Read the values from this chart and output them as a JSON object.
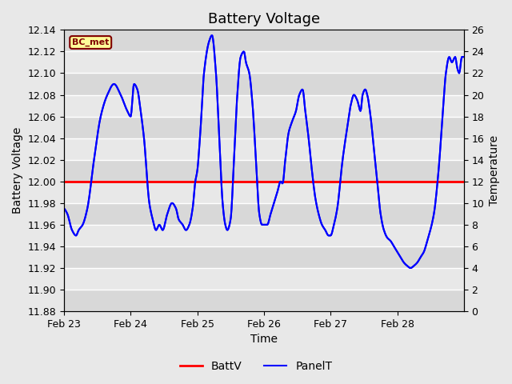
{
  "title": "Battery Voltage",
  "ylabel_left": "Battery Voltage",
  "ylabel_right": "Temperature",
  "xlabel": "Time",
  "xlim": [
    0,
    6.0
  ],
  "ylim_left": [
    11.88,
    12.14
  ],
  "ylim_right": [
    0,
    26
  ],
  "yticks_left": [
    11.88,
    11.9,
    11.92,
    11.94,
    11.96,
    11.98,
    12.0,
    12.02,
    12.04,
    12.06,
    12.08,
    12.1,
    12.12,
    12.14
  ],
  "yticks_right": [
    0,
    2,
    4,
    6,
    8,
    10,
    12,
    14,
    16,
    18,
    20,
    22,
    24,
    26
  ],
  "xtick_labels": [
    "Feb 23",
    "Feb 24",
    "Feb 25",
    "Feb 26",
    "Feb 27",
    "Feb 28"
  ],
  "xtick_positions": [
    0,
    1,
    2,
    3,
    4,
    5
  ],
  "battv_value": 12.0,
  "background_color": "#e8e8e8",
  "plot_bg_color": "#e8e8e8",
  "grid_color": "white",
  "batt_color": "red",
  "panel_color": "blue",
  "label_color": "#800000",
  "label_bg": "#ffff99",
  "label_border": "#800000",
  "label_text": "BC_met",
  "legend_labels": [
    "BattV",
    "PanelT"
  ],
  "title_fontsize": 13,
  "axis_label_fontsize": 10,
  "tick_fontsize": 9,
  "line_width": 1.5
}
